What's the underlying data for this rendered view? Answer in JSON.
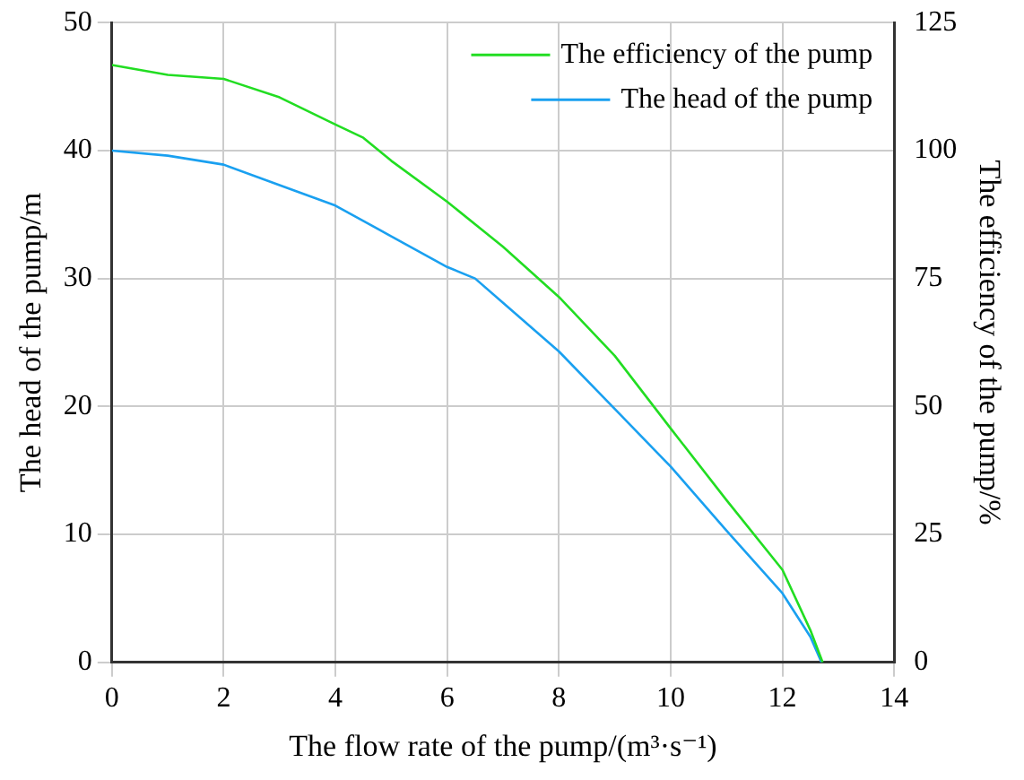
{
  "chart_data": {
    "type": "line",
    "xlabel": "The flow rate of the pump/(m³·s⁻¹)",
    "ylabel": "The head of the pump/m",
    "y2label": "The efficiency of the pump/%",
    "xlim": [
      0,
      14
    ],
    "xticks": [
      0,
      2,
      4,
      6,
      8,
      10,
      12,
      14
    ],
    "ylim": [
      0,
      50
    ],
    "yticks": [
      0,
      10,
      20,
      30,
      40,
      50
    ],
    "y2lim": [
      0,
      125
    ],
    "y2ticks": [
      0,
      25,
      50,
      75,
      100,
      125
    ],
    "grid": true,
    "legend": "top right",
    "marker": "none",
    "line_style": "solid",
    "series": [
      {
        "name": "The efficiency of the pump",
        "color": "#22dd22",
        "axis": "y2",
        "x": [
          0,
          1,
          2,
          3,
          4,
          4.5,
          5,
          6,
          7,
          8,
          9,
          10,
          11,
          12,
          12.5,
          12.72
        ],
        "values": [
          116.7,
          114.8,
          114,
          110.4,
          105.1,
          102.5,
          98,
          90,
          81.2,
          71.4,
          59.9,
          45.7,
          31.7,
          18.1,
          6.3,
          0
        ]
      },
      {
        "name": "The head of the pump",
        "color": "#1aa0f0",
        "axis": "y",
        "x": [
          0,
          1,
          2,
          3,
          4,
          5,
          6,
          6.5,
          7,
          8,
          9,
          10,
          11,
          12,
          12.5,
          12.7
        ],
        "values": [
          40,
          39.6,
          38.9,
          37.3,
          35.7,
          33.3,
          30.9,
          30,
          28.1,
          24.3,
          19.8,
          15.3,
          10.3,
          5.4,
          2,
          0
        ]
      }
    ]
  }
}
